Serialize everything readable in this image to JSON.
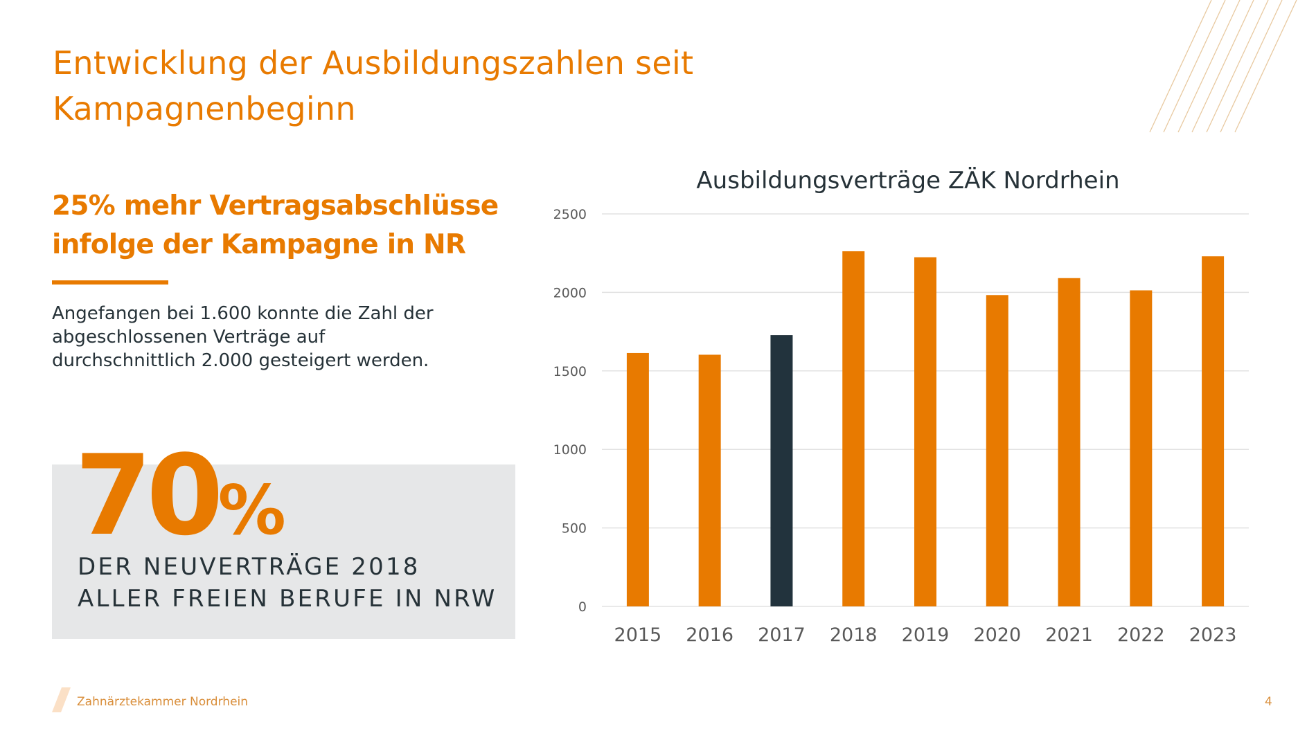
{
  "slide": {
    "title_line1": "Entwicklung der Ausbildungszahlen seit",
    "title_line2": "Kampagnenbeginn",
    "subheading_line1": "25% mehr Vertragsabschlüsse",
    "subheading_line2": "infolge der Kampagne in NR",
    "body_line1": "Angefangen bei 1.600 konnte die Zahl der",
    "body_line2": "abgeschlossenen Verträge auf",
    "body_line3": "durchschnittlich 2.000 gesteigert werden.",
    "stat_value": "70",
    "stat_unit": "%",
    "stat_caption_line1": "DER NEUVERTRÄGE 2018",
    "stat_caption_line2": "ALLER FREIEN BERUFE IN NRW"
  },
  "footer": {
    "organization": "Zahnärztekammer Nordrhein",
    "page_number": "4"
  },
  "colors": {
    "accent": "#E87A00",
    "highlight_bar": "#22333D",
    "text_dark": "#263238",
    "stat_box_bg": "#E6E7E8",
    "decor_lines": "#E8C9A0",
    "footer_text": "#D98E3A"
  },
  "chart_data": {
    "type": "bar",
    "title": "Ausbildungsverträge ZÄK Nordrhein",
    "xlabel": "",
    "ylabel": "",
    "categories": [
      "2015",
      "2016",
      "2017",
      "2018",
      "2019",
      "2020",
      "2021",
      "2022",
      "2023"
    ],
    "values": [
      1614,
      1603,
      1728,
      2262,
      2224,
      1983,
      2091,
      2013,
      2230
    ],
    "highlight_category": "2017",
    "ylim": [
      0,
      2500
    ],
    "yticks": [
      0,
      500,
      1000,
      1500,
      2000,
      2500
    ],
    "ytick_labels": [
      "0",
      "500",
      "1000",
      "1500",
      "2000",
      "2500"
    ],
    "grid": true,
    "legend": "none"
  }
}
